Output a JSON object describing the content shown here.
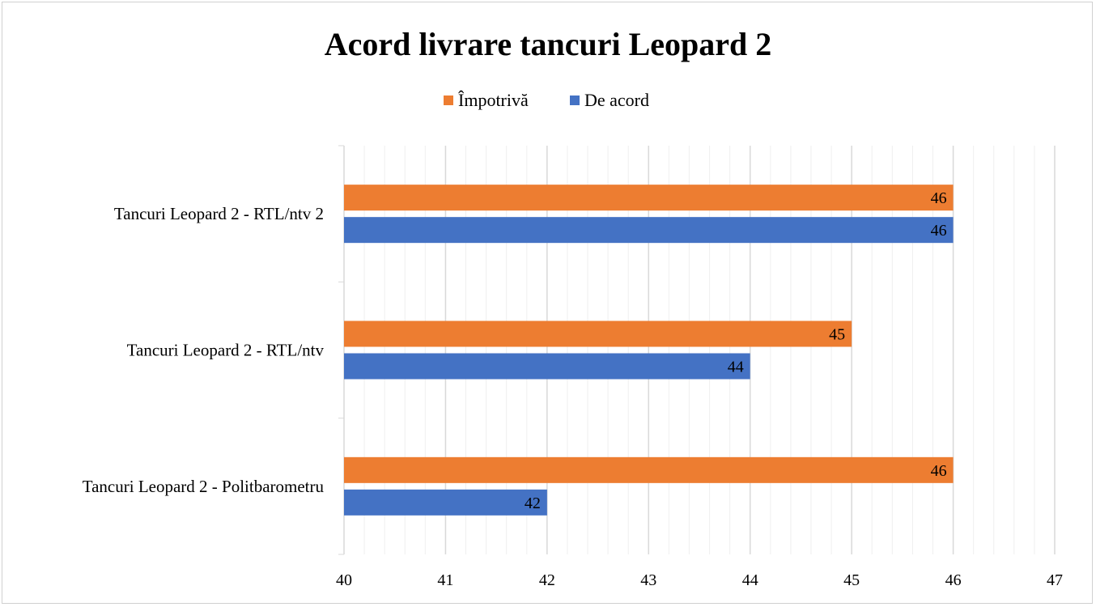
{
  "chart_data": {
    "type": "bar",
    "orientation": "horizontal",
    "title": "Acord livrare tancuri Leopard 2",
    "categories": [
      "Tancuri Leopard 2 - RTL/ntv 2",
      "Tancuri Leopard 2 - RTL/ntv",
      "Tancuri Leopard 2 - Politbarometru"
    ],
    "series": [
      {
        "name": "Împotrivă",
        "color": "#ED7D31",
        "values": [
          46,
          45,
          46
        ]
      },
      {
        "name": "De acord",
        "color": "#4472C4",
        "values": [
          46,
          44,
          42
        ]
      }
    ],
    "xlim": [
      40,
      47
    ],
    "xticks": [
      40,
      41,
      42,
      43,
      44,
      45,
      46,
      47
    ],
    "grid": true,
    "legend_position": "top",
    "data_labels": true
  }
}
